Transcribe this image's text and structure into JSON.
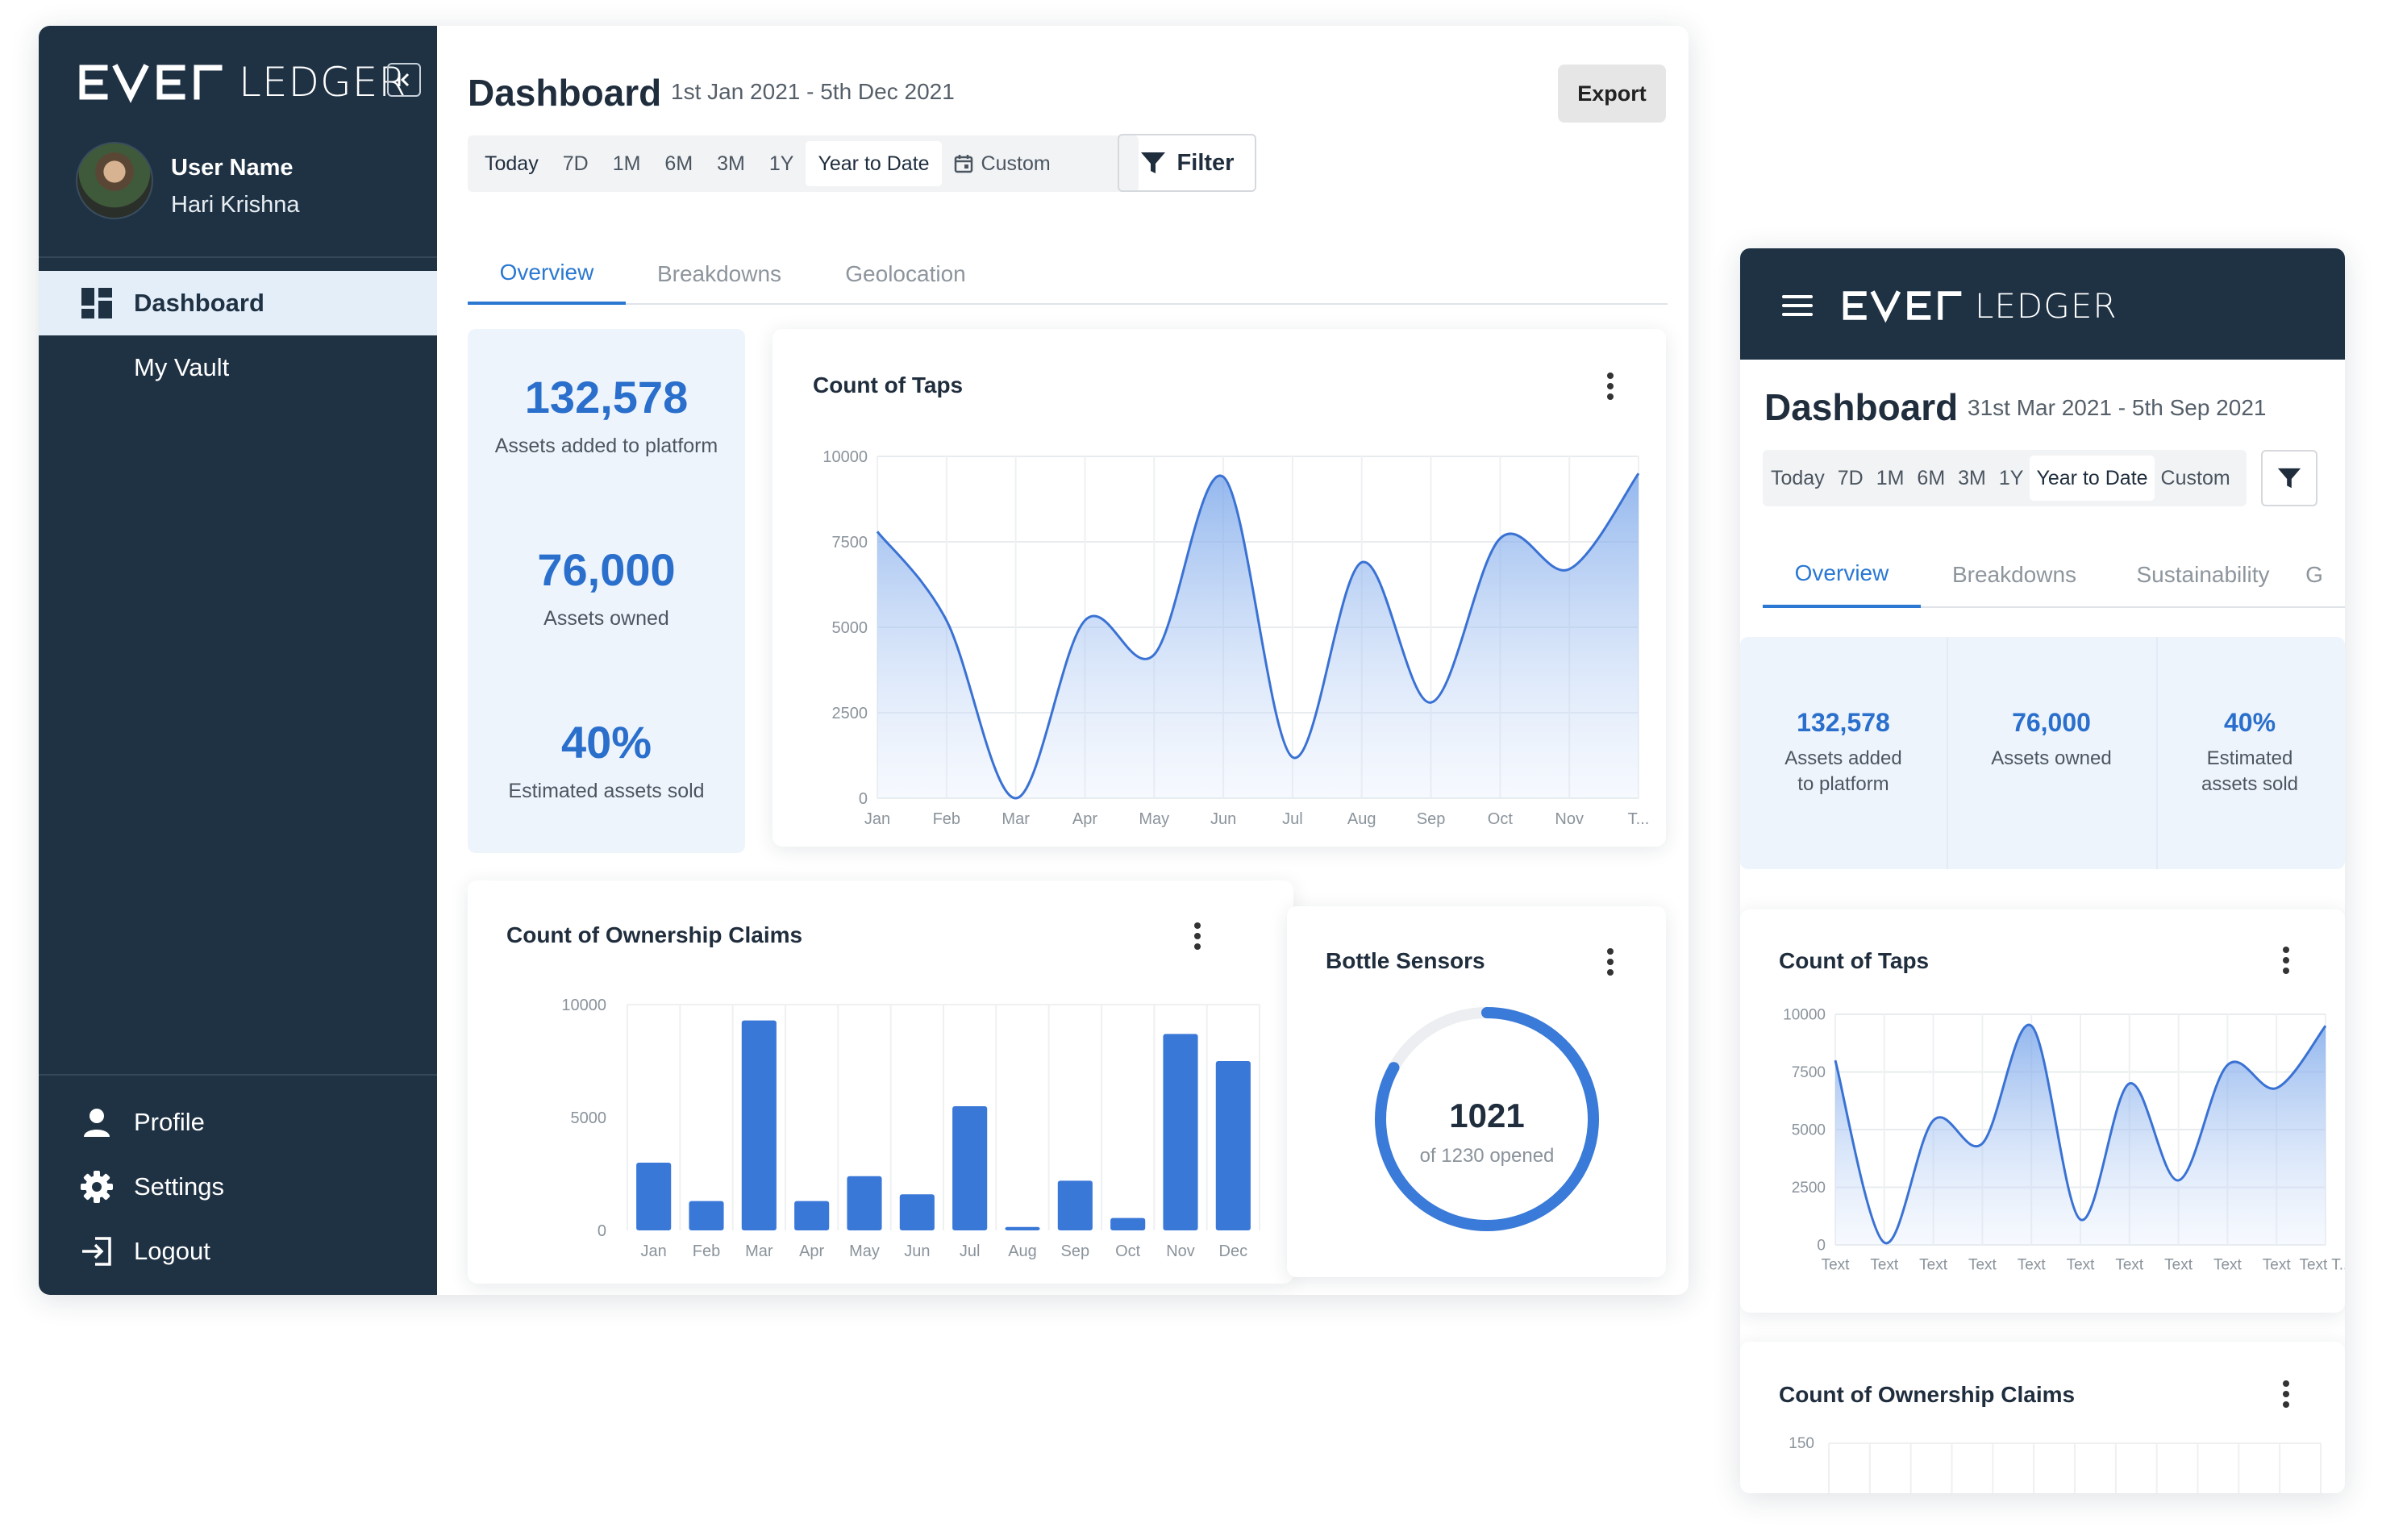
{
  "brand": {
    "logo_prefix": "EVER",
    "logo_suffix": "LEDGER"
  },
  "sidebar": {
    "user_label": "User Name",
    "user_name": "Hari Krishna",
    "nav": [
      {
        "label": "Dashboard",
        "icon": "dashboard-icon",
        "active": true
      },
      {
        "label": "My Vault",
        "icon": "",
        "active": false
      }
    ],
    "bottom": [
      {
        "label": "Profile",
        "icon": "user-icon"
      },
      {
        "label": "Settings",
        "icon": "gear-icon"
      },
      {
        "label": "Logout",
        "icon": "logout-icon"
      }
    ]
  },
  "desktop": {
    "title": "Dashboard",
    "date_range": "1st Jan 2021 - 5th Dec 2021",
    "export_label": "Export",
    "filter_label": "Filter",
    "ranges": [
      "Today",
      "7D",
      "1M",
      "6M",
      "3M",
      "1Y",
      "Year to Date",
      "Custom"
    ],
    "selected_range": "Year to Date",
    "tabs": [
      "Overview",
      "Breakdowns",
      "Geolocation"
    ],
    "active_tab": "Overview",
    "kpis": [
      {
        "value": "132,578",
        "label": "Assets added to platform"
      },
      {
        "value": "76,000",
        "label": "Assets owned"
      },
      {
        "value": "40%",
        "label": "Estimated assets sold"
      }
    ],
    "taps_title": "Count of Taps",
    "claims_title": "Count of Ownership Claims",
    "sensors": {
      "title": "Bottle Sensors",
      "value": "1021",
      "subtitle": "of 1230 opened",
      "opened": 1021,
      "total": 1230
    }
  },
  "mobile": {
    "title": "Dashboard",
    "date_range": "31st Mar 2021 - 5th Sep 2021",
    "ranges": [
      "Today",
      "7D",
      "1M",
      "6M",
      "3M",
      "1Y",
      "Year to Date",
      "Custom"
    ],
    "selected_range": "Year to Date",
    "tabs": [
      "Overview",
      "Breakdowns",
      "Sustainability",
      "G"
    ],
    "active_tab": "Overview",
    "kpis": [
      {
        "value": "132,578",
        "label": "Assets added to platform"
      },
      {
        "value": "76,000",
        "label": "Assets owned"
      },
      {
        "value": "40%",
        "label": "Estimated assets sold"
      }
    ],
    "taps_title": "Count of Taps",
    "claims_title": "Count of Ownership Claims",
    "claims_ytick": "150"
  },
  "colors": {
    "sidebar": "#1f3244",
    "accent": "#2a78d2",
    "bar": "#3a78d8",
    "kpi_bg": "#eef4fc"
  },
  "chart_data": [
    {
      "id": "desktop-taps",
      "type": "area",
      "title": "Count of Taps",
      "categories": [
        "Jan",
        "Feb",
        "Mar",
        "Apr",
        "May",
        "Jun",
        "Jul",
        "Aug",
        "Sep",
        "Oct",
        "Nov",
        "T..."
      ],
      "values": [
        7800,
        5200,
        0,
        5200,
        4200,
        9400,
        1200,
        6900,
        2800,
        7600,
        6700,
        9500
      ],
      "yticks": [
        "10000",
        "7500",
        "5000",
        "2500",
        "0"
      ],
      "ylim": [
        0,
        10000
      ],
      "grid": true
    },
    {
      "id": "desktop-claims",
      "type": "bar",
      "title": "Count of Ownership Claims",
      "categories": [
        "Jan",
        "Feb",
        "Mar",
        "Apr",
        "May",
        "Jun",
        "Jul",
        "Aug",
        "Sep",
        "Oct",
        "Nov",
        "Dec"
      ],
      "values": [
        3000,
        1300,
        9300,
        1300,
        2400,
        1600,
        5500,
        150,
        2200,
        550,
        8700,
        7500
      ],
      "yticks": [
        "10000",
        "5000",
        "0"
      ],
      "ylim": [
        0,
        10000
      ],
      "grid": true
    },
    {
      "id": "mobile-taps",
      "type": "area",
      "title": "Count of Taps",
      "categories": [
        "Text",
        "Text",
        "Text",
        "Text",
        "Text",
        "Text",
        "Text",
        "Text",
        "Text",
        "Text",
        "Text T..."
      ],
      "values": [
        8000,
        100,
        5400,
        4400,
        9500,
        1100,
        7000,
        2800,
        7800,
        6800,
        9500
      ],
      "yticks": [
        "10000",
        "7500",
        "5000",
        "2500",
        "0"
      ],
      "ylim": [
        0,
        10000
      ],
      "grid": true
    }
  ]
}
